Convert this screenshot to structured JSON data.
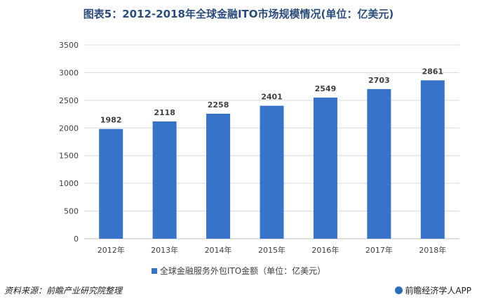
{
  "chart_data": {
    "type": "bar",
    "title": "图表5：2012-2018年全球金融ITO市场规模情况(单位：亿美元)",
    "categories": [
      "2012年",
      "2013年",
      "2014年",
      "2015年",
      "2016年",
      "2017年",
      "2018年"
    ],
    "series": [
      {
        "name": "全球金融服务外包ITO金额（单位：亿美元）",
        "values": [
          1982,
          2118,
          2258,
          2401,
          2549,
          2703,
          2861
        ],
        "color": "#3773c8"
      }
    ],
    "y_ticks": [
      "0",
      "500",
      "1000",
      "1500",
      "2000",
      "2500",
      "3000",
      "3500"
    ],
    "ylim": [
      0,
      3500
    ],
    "grid": true,
    "legend_position": "bottom"
  },
  "footer": {
    "source": "资料来源：前瞻产业研究院整理",
    "credit": "前瞻经济学人APP"
  }
}
